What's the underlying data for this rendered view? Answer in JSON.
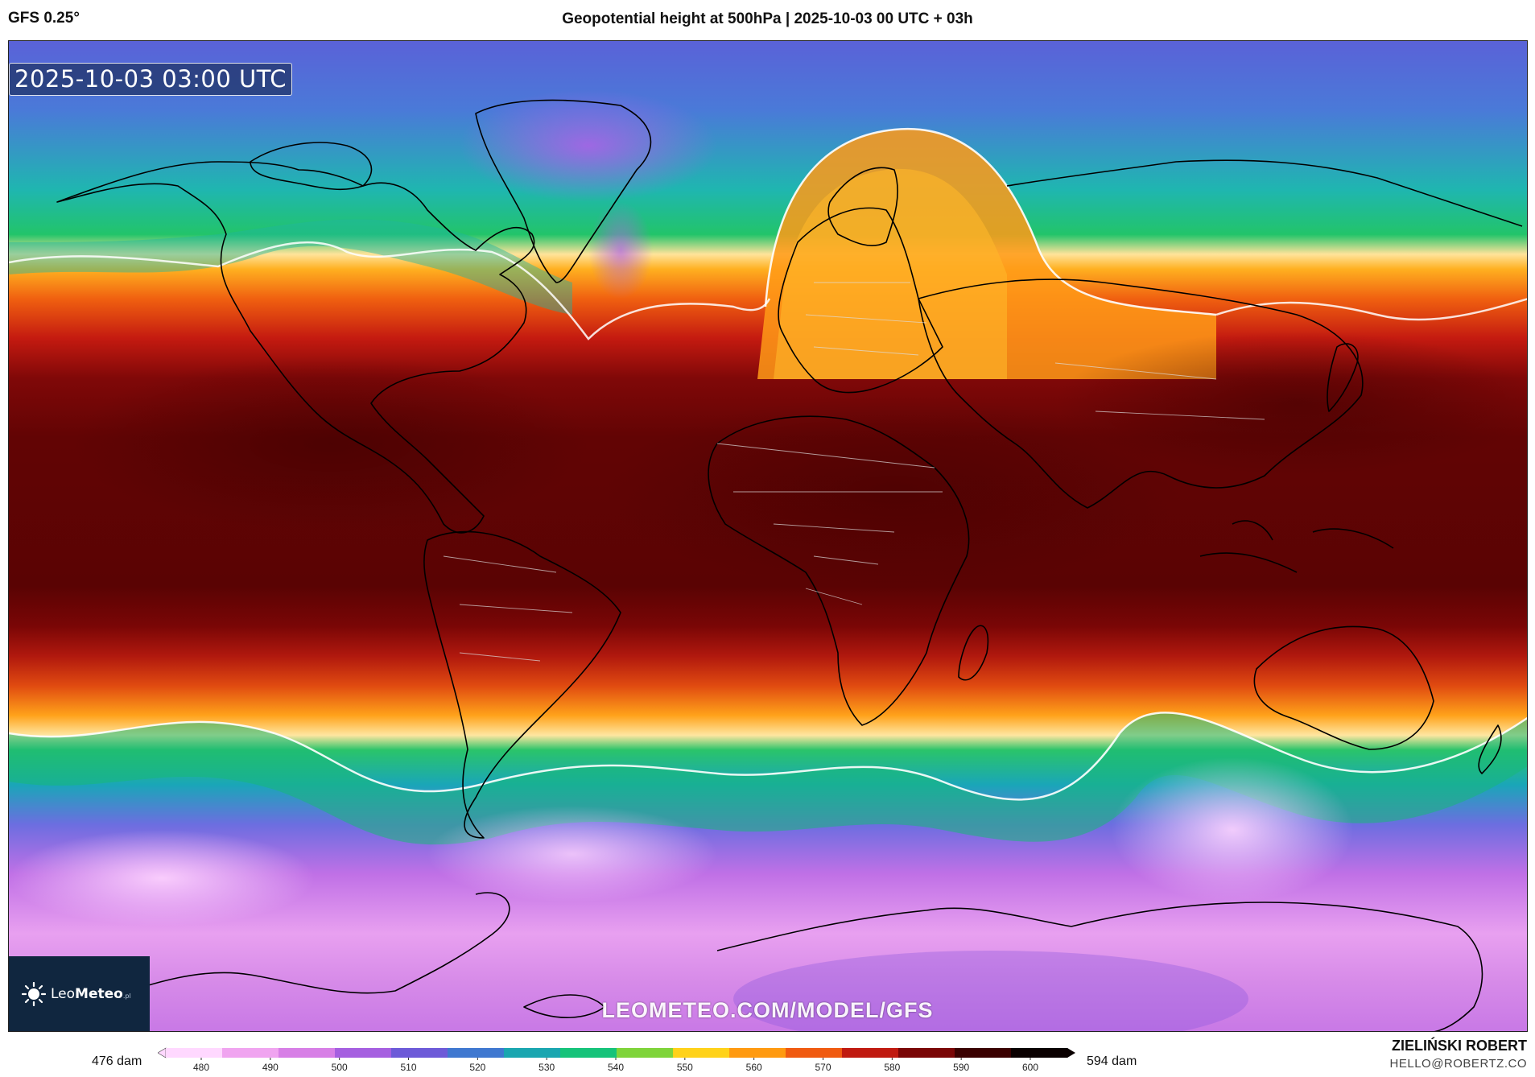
{
  "header": {
    "model": "GFS 0.25°",
    "title": "Geopotential height at 500hPa | 2025-10-03 00 UTC + 03h"
  },
  "map": {
    "timestamp": "2025-10-03 03:00 UTC",
    "watermark": "LEOMETEO.COM/MODEL/GFS",
    "projection": "equirectangular",
    "field": "geopotential height 500hPa",
    "contour_highlight": "552 dam"
  },
  "logo": {
    "name_light": "Leo",
    "name_bold": "Meteo",
    "suffix": ".pl"
  },
  "colorbar": {
    "min_label": "476 dam",
    "max_label": "594 dam",
    "ticks": [
      "480",
      "490",
      "500",
      "510",
      "520",
      "530",
      "540",
      "550",
      "560",
      "570",
      "580",
      "590",
      "600"
    ],
    "colors": [
      "#ffd8ff",
      "#f0a4f0",
      "#d77fe6",
      "#a55fe0",
      "#6d5ad8",
      "#3f78d0",
      "#1aa6b0",
      "#16c37a",
      "#7fd43a",
      "#ffd21a",
      "#ff9a10",
      "#f05a10",
      "#c01a10",
      "#7a0606",
      "#3a0000",
      "#0a0000"
    ]
  },
  "credit": {
    "name": "ZIELIŃSKI ROBERT",
    "email": "HELLO@ROBERTZ.CO"
  }
}
